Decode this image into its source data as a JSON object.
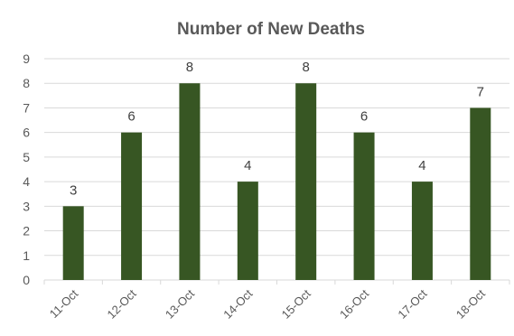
{
  "chart_data": {
    "type": "bar",
    "title": "Number of New Deaths",
    "xlabel": "",
    "ylabel": "",
    "categories": [
      "11-Oct",
      "12-Oct",
      "13-Oct",
      "14-Oct",
      "15-Oct",
      "16-Oct",
      "17-Oct",
      "18-Oct"
    ],
    "values": [
      3,
      6,
      8,
      4,
      8,
      6,
      4,
      7
    ],
    "data_labels": [
      "3",
      "6",
      "8",
      "4",
      "8",
      "6",
      "4",
      "7"
    ],
    "ylim": [
      0,
      9
    ],
    "y_ticks": [
      "0",
      "1",
      "2",
      "3",
      "4",
      "5",
      "6",
      "7",
      "8",
      "9"
    ],
    "grid": "horizontal",
    "legend": "none",
    "colors": {
      "bar": "#375623",
      "grid": "#d9d9d9",
      "text": "#595959",
      "label": "#404040"
    }
  }
}
